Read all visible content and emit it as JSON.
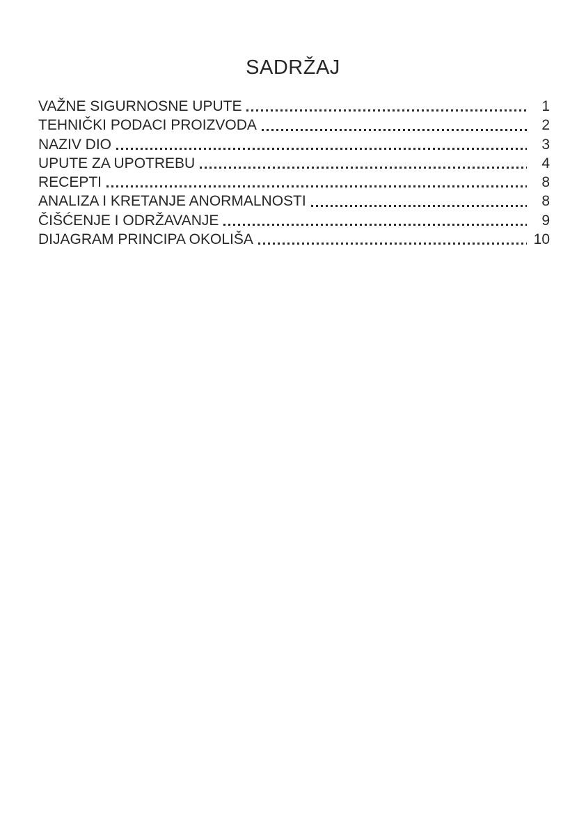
{
  "document": {
    "title": "SADRŽAJ",
    "toc": {
      "entries": [
        {
          "label": "VAŽNE SIGURNOSNE UPUTE",
          "page": "1"
        },
        {
          "label": "TEHNIČKI PODACI PROIZVODA",
          "page": "2"
        },
        {
          "label": "NAZIV DIO",
          "page": "3"
        },
        {
          "label": "UPUTE ZA UPOTREBU",
          "page": "4"
        },
        {
          "label": "RECEPTI",
          "page": "8"
        },
        {
          "label": "ANALIZA I KRETANJE ANORMALNOSTI",
          "page": "8"
        },
        {
          "label": "ČIŠĆENJE I ODRŽAVANJE",
          "page": "9"
        },
        {
          "label": "DIJAGRAM PRINCIPA OKOLIŠA",
          "page": "10"
        }
      ]
    },
    "colors": {
      "text": "#262626",
      "background": "#ffffff"
    }
  }
}
